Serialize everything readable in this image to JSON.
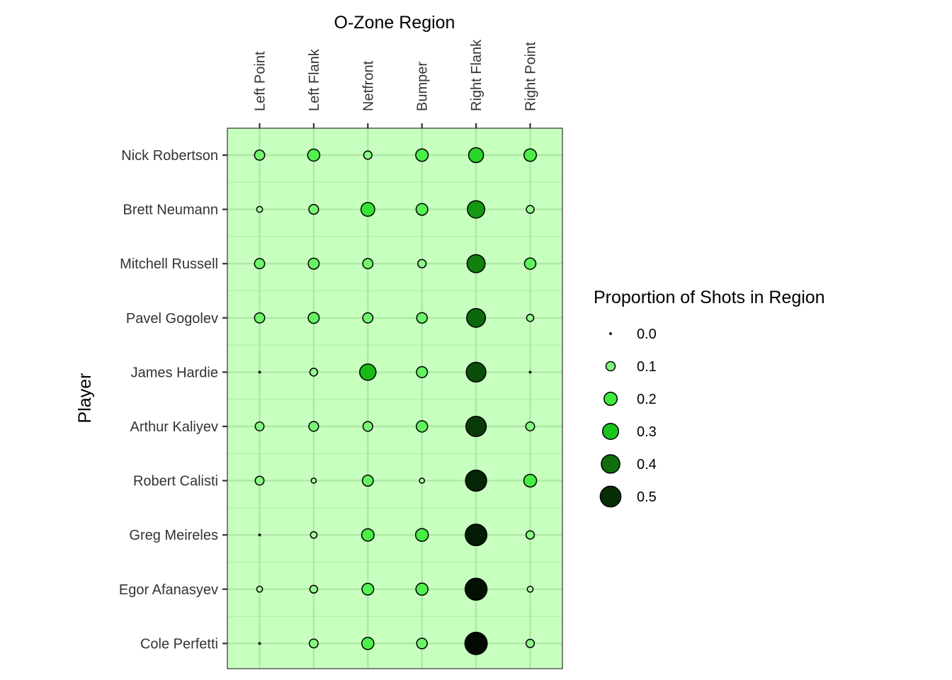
{
  "chart_data": {
    "type": "scatter",
    "subtype": "bubble-matrix",
    "xlabel": "O-Zone Region",
    "ylabel": "Player",
    "x_axis_position": "top",
    "categories": [
      "Left Point",
      "Left Flank",
      "Netfront",
      "Bumper",
      "Right Flank",
      "Right Point"
    ],
    "players": [
      "Nick Robertson",
      "Brett Neumann",
      "Mitchell Russell",
      "Pavel Gogolev",
      "James Hardie",
      "Arthur Kaliyev",
      "Robert Calisti",
      "Greg Meireles",
      "Egor Afanasyev",
      "Cole Perfetti"
    ],
    "values": [
      [
        0.12,
        0.17,
        0.08,
        0.18,
        0.26,
        0.18
      ],
      [
        0.04,
        0.11,
        0.22,
        0.16,
        0.35,
        0.07
      ],
      [
        0.12,
        0.14,
        0.12,
        0.08,
        0.38,
        0.15
      ],
      [
        0.12,
        0.14,
        0.12,
        0.13,
        0.41,
        0.06
      ],
      [
        0.0,
        0.07,
        0.31,
        0.14,
        0.45,
        0.0
      ],
      [
        0.09,
        0.11,
        0.11,
        0.15,
        0.48,
        0.09
      ],
      [
        0.09,
        0.03,
        0.14,
        0.03,
        0.52,
        0.19
      ],
      [
        0.0,
        0.05,
        0.18,
        0.19,
        0.54,
        0.08
      ],
      [
        0.04,
        0.07,
        0.16,
        0.17,
        0.56,
        0.04
      ],
      [
        0.0,
        0.09,
        0.17,
        0.13,
        0.58,
        0.08
      ]
    ],
    "legend": {
      "title": "Proportion of Shots in Region",
      "position": "right",
      "entries": [
        {
          "label": "0.0",
          "value": 0.0
        },
        {
          "label": "0.1",
          "value": 0.1
        },
        {
          "label": "0.2",
          "value": 0.2
        },
        {
          "label": "0.3",
          "value": 0.3
        },
        {
          "label": "0.4",
          "value": 0.4
        },
        {
          "label": "0.5",
          "value": 0.5
        }
      ]
    },
    "size_range": [
      0.0,
      0.6
    ],
    "color_scale": {
      "stops": [
        {
          "value": 0.0,
          "color": "#c6ffbe"
        },
        {
          "value": 0.1,
          "color": "#7ef77a"
        },
        {
          "value": 0.2,
          "color": "#3ced39"
        },
        {
          "value": 0.3,
          "color": "#1ac41a"
        },
        {
          "value": 0.4,
          "color": "#0e6e0e"
        },
        {
          "value": 0.5,
          "color": "#062e06"
        },
        {
          "value": 0.6,
          "color": "#000000"
        }
      ]
    },
    "panel_background": "#c6ffbe",
    "grid": true,
    "grid_color": "#aee8a6"
  }
}
